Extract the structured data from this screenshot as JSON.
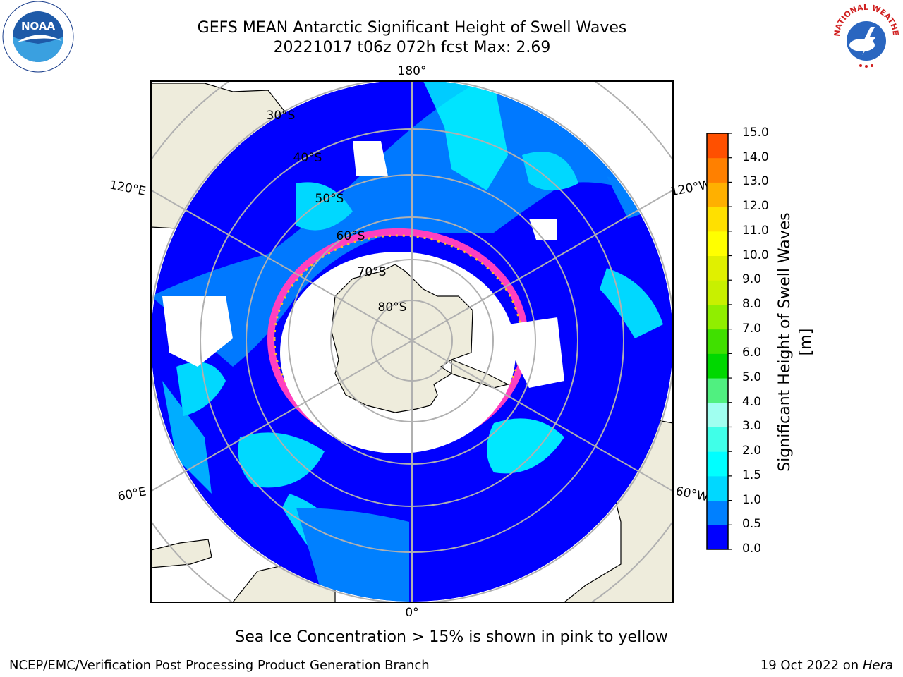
{
  "title_line1": "GEFS MEAN Antarctic Significant Height of Swell Waves",
  "title_line2": "20221017 t06z 072h fcst   Max: 2.69",
  "subtitle": "Sea Ice Concentration > 15% is shown in pink to yellow",
  "footer_left": "NCEP/EMC/Verification Post Processing Product Generation Branch",
  "footer_right_date": "19 Oct 2022 on ",
  "footer_right_host": "Hera",
  "logos": {
    "left": "noaa-logo",
    "right": "national-weather-service-logo",
    "left_text": "NOAA",
    "right_text": "NATIONAL WEATHER SERVICE"
  },
  "map": {
    "projection": "south-polar-stereographic",
    "longitude_labels": [
      "180°",
      "120°E",
      "120°W",
      "60°E",
      "60°W",
      "0°"
    ],
    "latitude_labels": [
      "30°S",
      "40°S",
      "50°S",
      "60°S",
      "70°S",
      "80°S"
    ],
    "colors": {
      "land": "#eeecdc",
      "coastline": "#000000",
      "gridline": "#b0b0b0",
      "sea_ice_pink": "#ff40c0",
      "sea_ice_yellow": "#ffc020"
    }
  },
  "colorbar": {
    "label": "Significant Height of Swell Waves [m]",
    "ticks": [
      "15.0",
      "14.0",
      "13.0",
      "12.0",
      "11.0",
      "10.0",
      "9.0",
      "8.0",
      "7.0",
      "6.0",
      "5.0",
      "4.0",
      "3.0",
      "2.0",
      "1.5",
      "1.0",
      "0.5",
      "0.0"
    ],
    "colors_bottom_to_top": [
      "#0000ff",
      "#0080ff",
      "#00d8ff",
      "#00ffff",
      "#40ffe8",
      "#a0fff0",
      "#50f080",
      "#00d800",
      "#40e000",
      "#90ee00",
      "#c8f000",
      "#e0f000",
      "#ffff00",
      "#ffe000",
      "#ffb000",
      "#ff8000",
      "#ff5000",
      "#ff2000",
      "#ff0000"
    ]
  }
}
